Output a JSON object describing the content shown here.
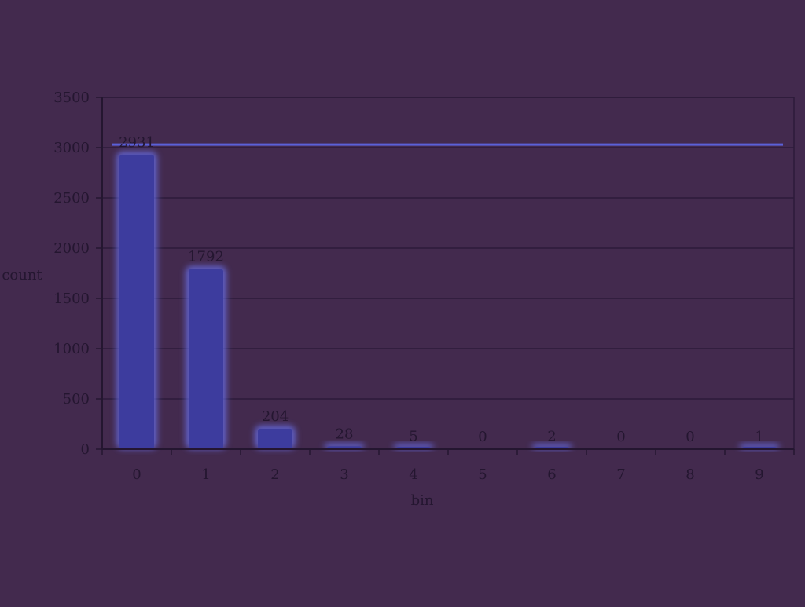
{
  "chart_data": {
    "type": "bar",
    "categories": [
      "0",
      "1",
      "2",
      "3",
      "4",
      "5",
      "6",
      "7",
      "8",
      "9"
    ],
    "series": [
      {
        "values": [
          2931,
          1792,
          204,
          28,
          5,
          0,
          2,
          0,
          0,
          1
        ]
      }
    ],
    "data_labels": [
      "2931",
      "1792",
      "204",
      "28",
      "5",
      "0",
      "2",
      "0",
      "0",
      "1"
    ],
    "y_ticks": [
      "0",
      "500",
      "1000",
      "1500",
      "2000",
      "2500",
      "3000",
      "3500"
    ],
    "ylim": [
      0,
      3500
    ],
    "reference_line": 3030,
    "xlabel": "bin",
    "ylabel": "count",
    "grid": "horizontal",
    "colors": {
      "background": "#432a4e",
      "bar_fill": "#3d3c9e",
      "bar_glow": "#6a72f0",
      "axis": "#241630",
      "grid": "#2d1b3a",
      "text": "#241630",
      "reference_line": "#5b60d8"
    }
  }
}
